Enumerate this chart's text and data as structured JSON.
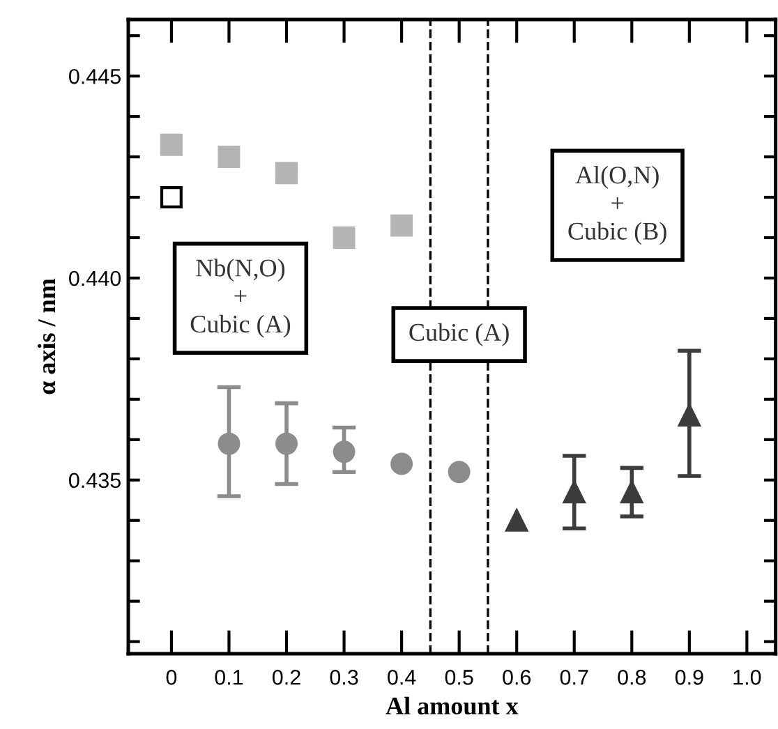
{
  "chart_data": {
    "type": "scatter",
    "xlabel": "Al amount x",
    "ylabel": "α axis / nm",
    "xlim": [
      -0.075,
      1.05
    ],
    "ylim": [
      0.4307,
      0.4464
    ],
    "xticks": [
      {
        "value": 0,
        "label": "0"
      },
      0.1,
      0.2,
      0.3,
      0.4,
      0.5,
      0.6,
      0.7,
      0.8,
      0.9,
      {
        "value": 1.0,
        "label": "1.0"
      }
    ],
    "yticks": [
      {
        "value": 0.431,
        "label": null
      },
      {
        "value": 0.432,
        "label": null
      },
      {
        "value": 0.433,
        "label": null
      },
      {
        "value": 0.434,
        "label": null
      },
      {
        "value": 0.435,
        "label": "0.435"
      },
      {
        "value": 0.436,
        "label": null
      },
      {
        "value": 0.437,
        "label": null
      },
      {
        "value": 0.438,
        "label": null
      },
      {
        "value": 0.439,
        "label": null
      },
      {
        "value": 0.44,
        "label": "0.440"
      },
      {
        "value": 0.441,
        "label": null
      },
      {
        "value": 0.442,
        "label": null
      },
      {
        "value": 0.443,
        "label": null
      },
      {
        "value": 0.444,
        "label": null
      },
      {
        "value": 0.445,
        "label": "0.445"
      },
      {
        "value": 0.446,
        "label": null
      }
    ],
    "grid": false,
    "series": [
      {
        "color": "#b4b4b4",
        "marker": "square",
        "x": [
          0,
          0.1,
          0.2,
          0.3,
          0.4
        ],
        "values": [
          0.4433,
          0.443,
          0.4426,
          0.441,
          0.4413
        ]
      },
      {
        "color": "#000000",
        "marker": "square",
        "x": [
          0
        ],
        "values": [
          0.442
        ]
      },
      {
        "color": "#8c8c8c",
        "marker": "circle",
        "x": [
          0.1,
          0.2,
          0.3,
          0.4,
          0.5
        ],
        "values": [
          0.4359,
          0.4359,
          0.4357,
          0.4354,
          0.4352
        ],
        "errors": [
          [
            0.4346,
            0.4373
          ],
          [
            0.4349,
            0.4369
          ],
          [
            0.4352,
            0.4363
          ],
          null,
          null
        ]
      },
      {
        "color": "#3c3c3c",
        "marker": "triangle",
        "x": [
          0.6,
          0.7,
          0.8,
          0.9
        ],
        "values": [
          0.434,
          0.4347,
          0.4347,
          0.4366
        ],
        "errors": [
          null,
          [
            0.4338,
            0.4356
          ],
          [
            0.4341,
            0.4353
          ],
          [
            0.4351,
            0.4382
          ]
        ]
      }
    ],
    "ref_lines": [
      {
        "axis": "x",
        "value": 0.45,
        "line_style": "dashed"
      },
      {
        "axis": "x",
        "value": 0.55,
        "line_style": "dashed"
      }
    ],
    "annotations": [
      "Nb(N,O)\n+\nCubic (A)",
      "Cubic (A)",
      "Al(O,N)\n+\nCubic (B)"
    ]
  }
}
